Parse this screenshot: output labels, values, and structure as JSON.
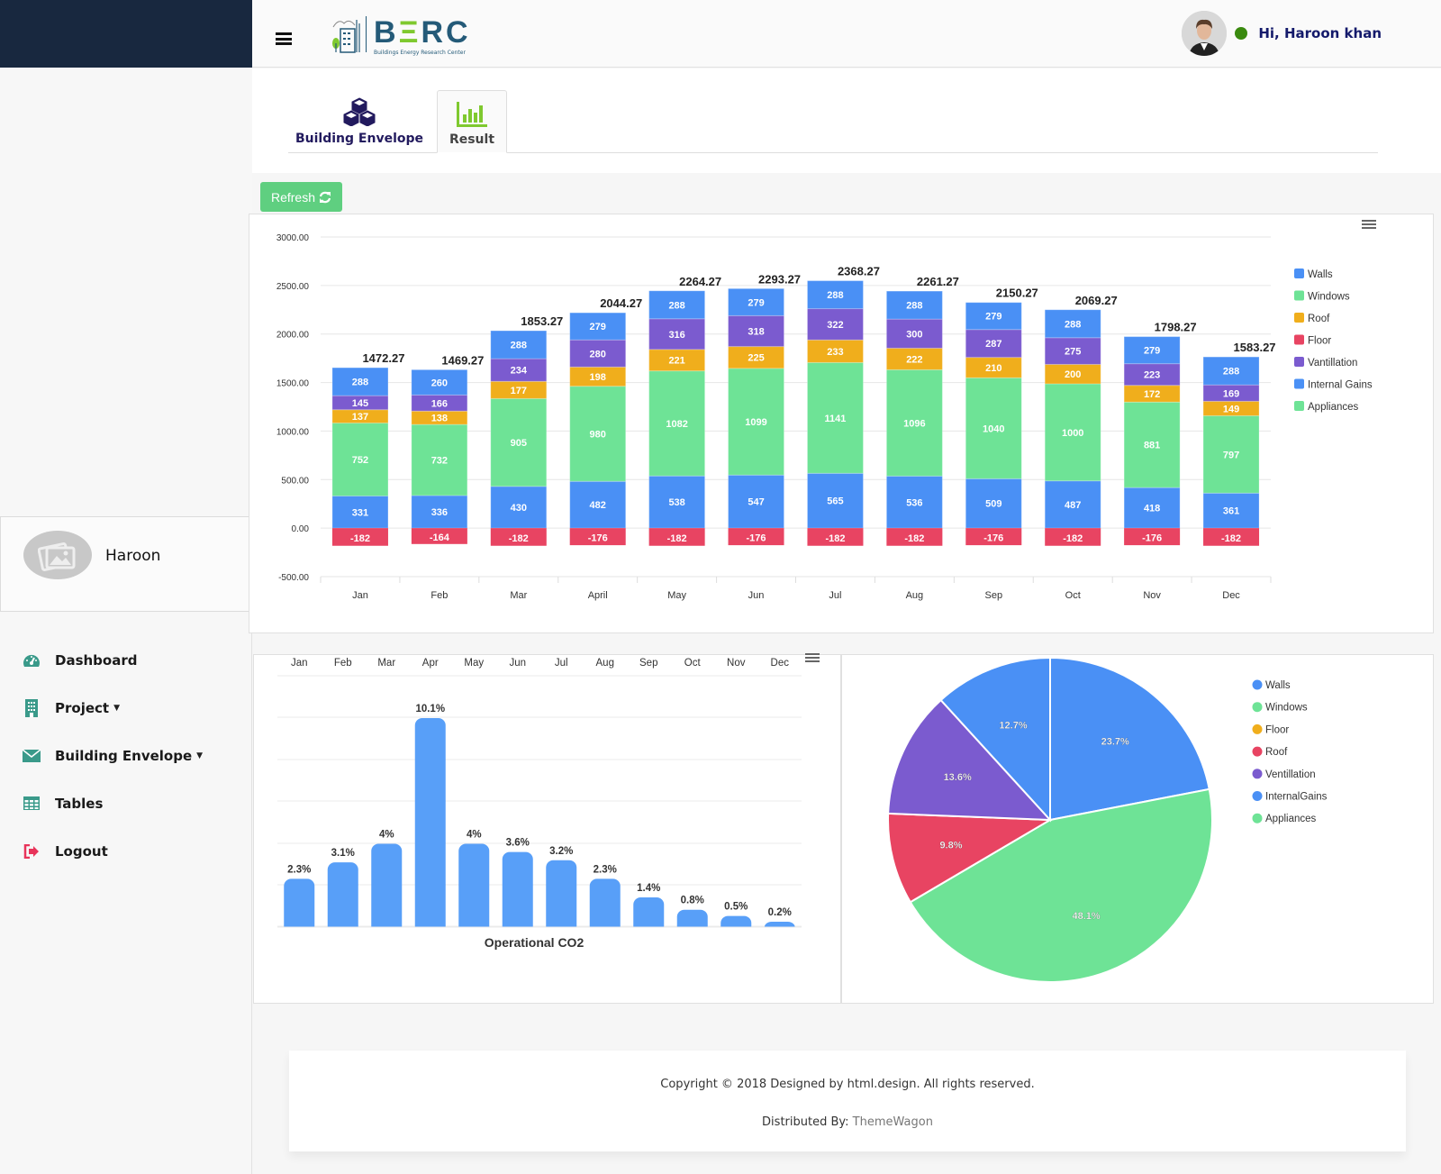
{
  "header": {
    "logo_main": "BERC",
    "logo_sub": "Buildings Energy Research Center",
    "greeting": "Hi, Haroon khan",
    "status_color": "#3a8a0f"
  },
  "tabs": [
    {
      "label": "Building Envelope",
      "icon": "cubes-icon",
      "active": false
    },
    {
      "label": "Result",
      "icon": "bar-chart-icon",
      "active": true
    }
  ],
  "toolbar": {
    "refresh_label": "Refresh",
    "refresh_icon": "refresh-icon"
  },
  "sidebar": {
    "profile_name": "Haroon",
    "items": [
      {
        "label": "Dashboard",
        "icon": "dashboard-icon",
        "dropdown": false
      },
      {
        "label": "Project",
        "icon": "building-icon",
        "dropdown": true
      },
      {
        "label": "Building Envelope",
        "icon": "envelope-icon",
        "dropdown": true
      },
      {
        "label": "Tables",
        "icon": "table-icon",
        "dropdown": false
      },
      {
        "label": "Logout",
        "icon": "logout-icon",
        "dropdown": false
      }
    ]
  },
  "footer": {
    "copyright": "Copyright © 2018 Designed by html.design. All rights reserved.",
    "distributed_prefix": "Distributed By: ",
    "distributed_link": "ThemeWagon"
  },
  "chart_data": [
    {
      "type": "bar",
      "stacked": true,
      "title": "",
      "categories": [
        "Jan",
        "Feb",
        "Mar",
        "April",
        "May",
        "Jun",
        "Jul",
        "Aug",
        "Sep",
        "Oct",
        "Nov",
        "Dec"
      ],
      "ylim": [
        -500,
        3000
      ],
      "yticks": [
        "-500.00",
        "0.00",
        "500.00",
        "1000.00",
        "1500.00",
        "2000.00",
        "2500.00",
        "3000.00"
      ],
      "ytick_values": [
        -500,
        0,
        500,
        1000,
        1500,
        2000,
        2500,
        3000
      ],
      "grid": true,
      "legend_position": "right",
      "totals": [
        "1472.27",
        "1469.27",
        "1853.27",
        "2044.27",
        "2264.27",
        "2293.27",
        "2368.27",
        "2261.27",
        "2150.27",
        "2069.27",
        "1798.27",
        "1583.27"
      ],
      "series": [
        {
          "name": "Walls",
          "color": "#4a90f5",
          "values": [
            331,
            336,
            430,
            482,
            538,
            547,
            565,
            536,
            509,
            487,
            418,
            361
          ]
        },
        {
          "name": "Windows",
          "color": "#6ee396",
          "values": [
            752,
            732,
            905,
            980,
            1082,
            1099,
            1141,
            1096,
            1040,
            1000,
            881,
            797
          ]
        },
        {
          "name": "Roof",
          "color": "#f0ae1c",
          "values": [
            137,
            138,
            177,
            198,
            221,
            225,
            233,
            222,
            210,
            200,
            172,
            149
          ]
        },
        {
          "name": "Floor",
          "color": "#e84462",
          "values": [
            -182,
            -164,
            -182,
            -176,
            -182,
            -176,
            -182,
            -182,
            -176,
            -182,
            -176,
            -182
          ]
        },
        {
          "name": "Vantillation",
          "color": "#7b5bcf",
          "values": [
            145,
            166,
            234,
            280,
            316,
            318,
            322,
            300,
            287,
            275,
            223,
            169
          ]
        },
        {
          "name": "Internal Gains",
          "color": "#4a90f5",
          "values": [
            288,
            260,
            288,
            279,
            288,
            279,
            288,
            288,
            279,
            288,
            279,
            288
          ]
        },
        {
          "name": "Appliances",
          "color": "#6ee396",
          "values": [
            0,
            0,
            0,
            0,
            0,
            0,
            0,
            0,
            0,
            0,
            0,
            0
          ]
        }
      ]
    },
    {
      "type": "bar",
      "title": "Operational CO2",
      "categories": [
        "Jan",
        "Feb",
        "Mar",
        "Apr",
        "May",
        "Jun",
        "Jul",
        "Aug",
        "Sep",
        "Oct",
        "Nov",
        "Dec"
      ],
      "values": [
        2.3,
        3.1,
        4,
        10.1,
        4,
        3.6,
        3.2,
        2.3,
        1.4,
        0.8,
        0.5,
        0.2
      ],
      "labels": [
        "2.3%",
        "3.1%",
        "4%",
        "10.1%",
        "4%",
        "3.6%",
        "3.2%",
        "2.3%",
        "1.4%",
        "0.8%",
        "0.5%",
        "0.2%"
      ],
      "ylim": [
        0,
        15
      ],
      "color": "#589ff8",
      "grid": true,
      "xaxis_position": "top"
    },
    {
      "type": "pie",
      "title": "",
      "legend_position": "right",
      "legend": [
        {
          "name": "Walls",
          "color": "#4a90f5"
        },
        {
          "name": "Windows",
          "color": "#6ee396"
        },
        {
          "name": "Floor",
          "color": "#f0ae1c"
        },
        {
          "name": "Roof",
          "color": "#e84462"
        },
        {
          "name": "Ventillation",
          "color": "#7b5bcf"
        },
        {
          "name": "InternalGains",
          "color": "#4a90f5"
        },
        {
          "name": "Appliances",
          "color": "#6ee396"
        }
      ],
      "slices": [
        {
          "name": "Walls",
          "value": 23.7,
          "label": "23.7%",
          "color": "#4a90f5"
        },
        {
          "name": "Windows",
          "value": 48.1,
          "label": "48.1%",
          "color": "#6ee396"
        },
        {
          "name": "Roof",
          "value": 9.8,
          "label": "9.8%",
          "color": "#e84462"
        },
        {
          "name": "Ventillation",
          "value": 13.6,
          "label": "13.6%",
          "color": "#7b5bcf"
        },
        {
          "name": "InternalGains",
          "value": 12.7,
          "label": "12.7%",
          "color": "#4a90f5"
        }
      ]
    }
  ]
}
